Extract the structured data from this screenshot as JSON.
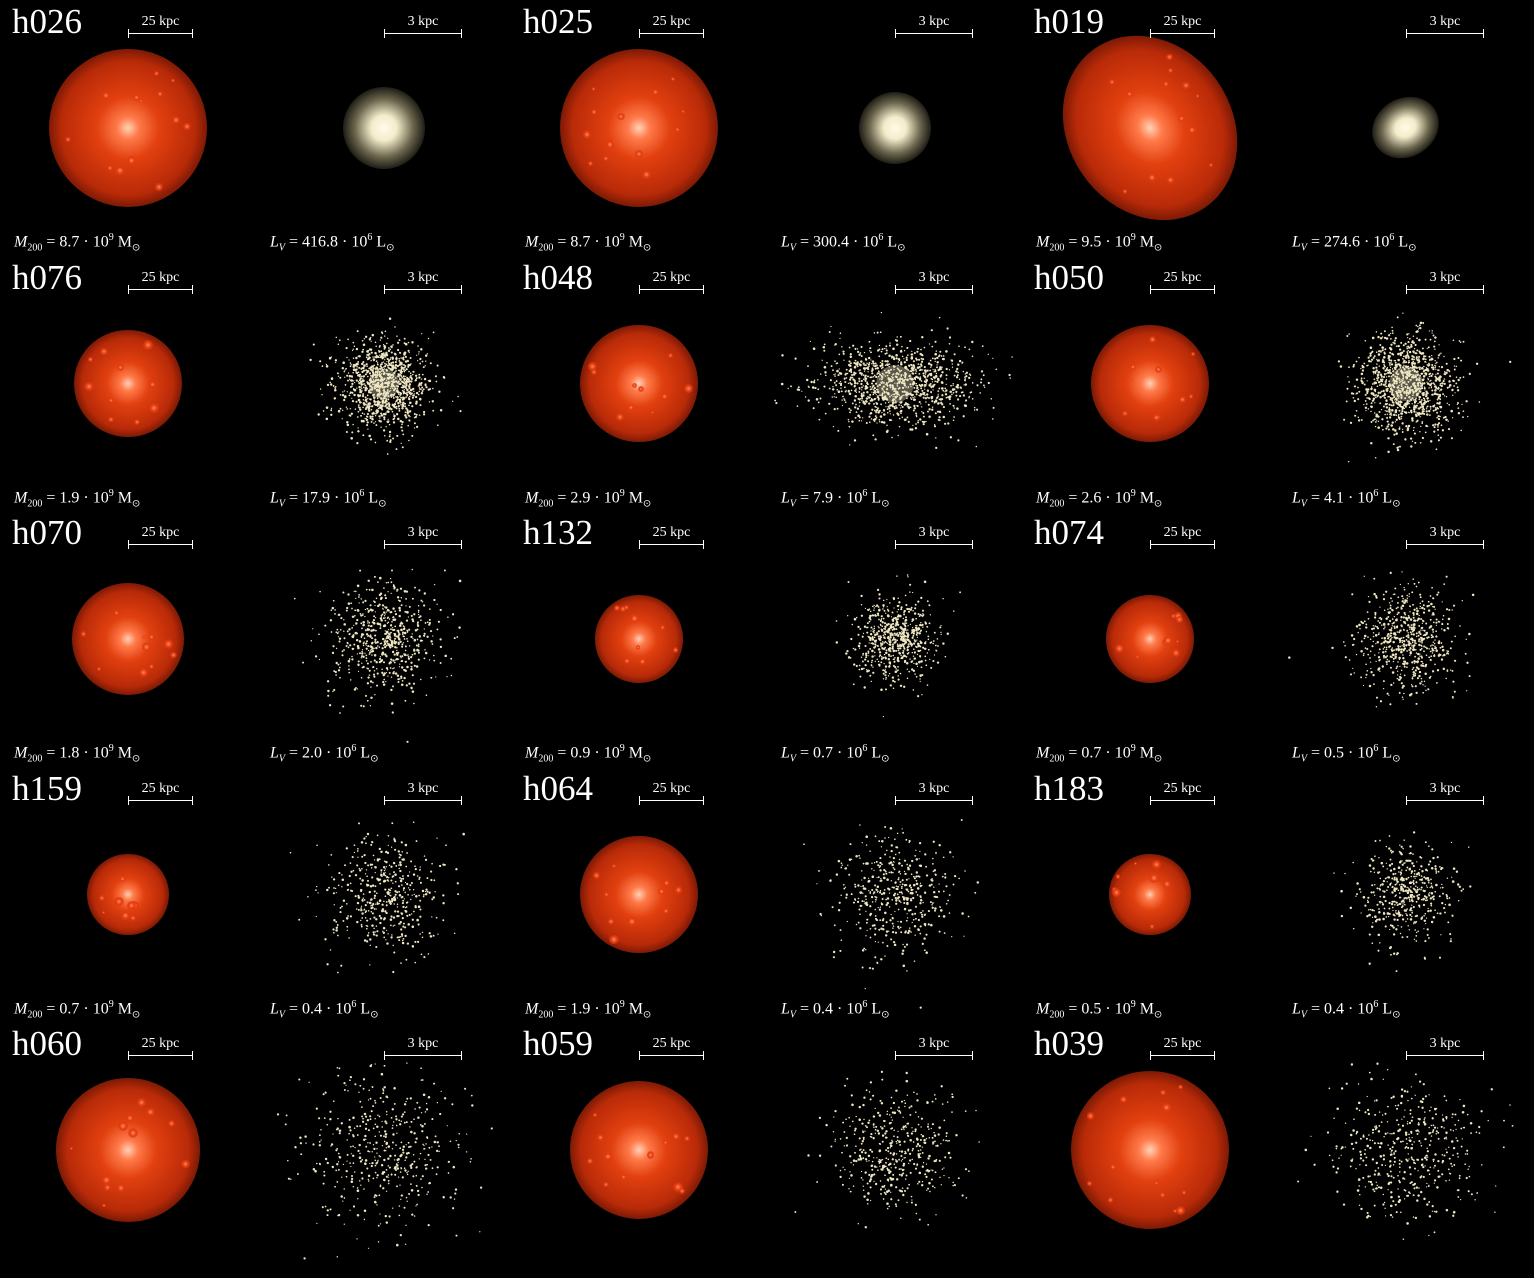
{
  "scale_labels": {
    "dm": "25 kpc",
    "stars": "3 kpc"
  },
  "halos": [
    {
      "name": "h026",
      "mass": "8.7",
      "lum": "416.8",
      "dm_size": 0.62,
      "stars": "smooth",
      "star_size": 0.32,
      "colors": {
        "halo": "#c8300c"
      }
    },
    {
      "name": "h025",
      "mass": "8.7",
      "lum": "300.4",
      "dm_size": 0.62,
      "stars": "smooth",
      "star_size": 0.28
    },
    {
      "name": "h019",
      "mass": "9.5",
      "lum": "274.6",
      "dm_size": 0.64,
      "stars": "smooth",
      "star_size": 0.27
    },
    {
      "name": "h076",
      "mass": "1.9",
      "lum": "17.9",
      "dm_size": 0.42,
      "stars": "dotted-dense",
      "star_size": 0.34
    },
    {
      "name": "h048",
      "mass": "2.9",
      "lum": "7.9",
      "dm_size": 0.46,
      "stars": "dotted-dense",
      "star_size": 0.42
    },
    {
      "name": "h050",
      "mass": "2.6",
      "lum": "4.1",
      "dm_size": 0.46,
      "stars": "dotted-dense",
      "star_size": 0.38
    },
    {
      "name": "h070",
      "mass": "1.8",
      "lum": "2.0",
      "dm_size": 0.44,
      "stars": "dotted",
      "star_size": 0.42
    },
    {
      "name": "h132",
      "mass": "0.9",
      "lum": "0.7",
      "dm_size": 0.34,
      "stars": "dotted",
      "star_size": 0.32
    },
    {
      "name": "h074",
      "mass": "0.7",
      "lum": "0.5",
      "dm_size": 0.34,
      "stars": "dotted",
      "star_size": 0.38
    },
    {
      "name": "h159",
      "mass": "0.7",
      "lum": "0.4",
      "dm_size": 0.32,
      "stars": "sparse",
      "star_size": 0.44
    },
    {
      "name": "h064",
      "mass": "1.9",
      "lum": "0.4",
      "dm_size": 0.46,
      "stars": "sparse",
      "star_size": 0.46
    },
    {
      "name": "h183",
      "mass": "0.5",
      "lum": "0.4",
      "dm_size": 0.32,
      "stars": "sparse",
      "star_size": 0.36
    },
    {
      "name": "h060",
      "mass": "",
      "lum": "",
      "dm_size": 0.56,
      "stars": "sparse",
      "star_size": 0.6
    },
    {
      "name": "h059",
      "mass": "",
      "lum": "",
      "dm_size": 0.54,
      "stars": "sparse",
      "star_size": 0.46
    },
    {
      "name": "h039",
      "mass": "",
      "lum": "",
      "dm_size": 0.62,
      "stars": "sparse",
      "star_size": 0.56
    }
  ],
  "units": {
    "mass_prefix": "M",
    "mass_sub": "200",
    "mass_exp": "10",
    "mass_pow": "9",
    "mass_unit": "M",
    "lum_prefix": "L",
    "lum_sub": "V",
    "lum_pow": "6",
    "lum_unit": "L"
  },
  "colors": {
    "dm_outer": "#9c1e06",
    "dm_mid": "#e2400f",
    "dm_core": "#ffd2b8",
    "star_core": "#fffbe8",
    "star_dot": "#efe6c2"
  }
}
